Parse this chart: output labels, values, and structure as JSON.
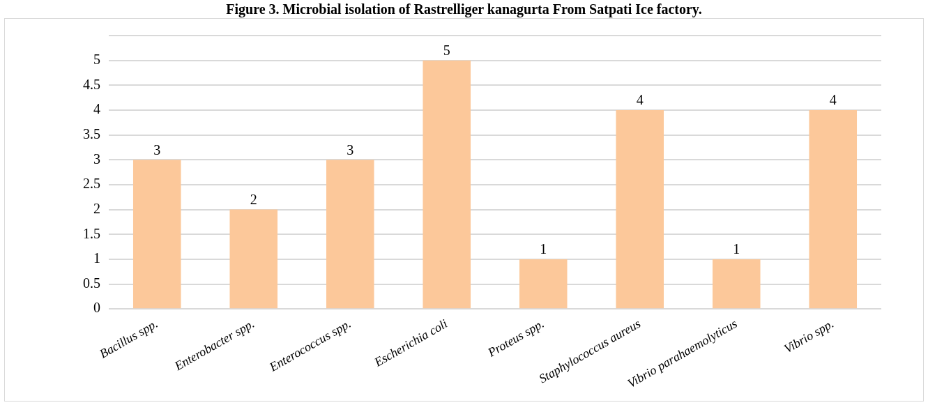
{
  "chart_data": {
    "type": "bar",
    "title": "Figure 3. Microbial isolation of Rastrelliger kanagurta From Satpati Ice factory.",
    "categories": [
      "Bacillus spp.",
      "Enterobacter spp.",
      "Enterococcus spp.",
      "Escherichia coli",
      "Proteus spp.",
      "Staphylococcus aureus",
      "Vibrio parahaemolyticus",
      "Vibrio spp."
    ],
    "values": [
      3,
      2,
      3,
      5,
      1,
      4,
      1,
      4
    ],
    "color": "#fcc89a",
    "ylim": [
      0,
      5.5
    ],
    "yticks": [
      0,
      0.5,
      1,
      1.5,
      2,
      2.5,
      3,
      3.5,
      4,
      4.5,
      5,
      {
        "value": 5.5,
        "label": null
      }
    ],
    "grid": "y",
    "data_labels": true,
    "legend": false
  }
}
